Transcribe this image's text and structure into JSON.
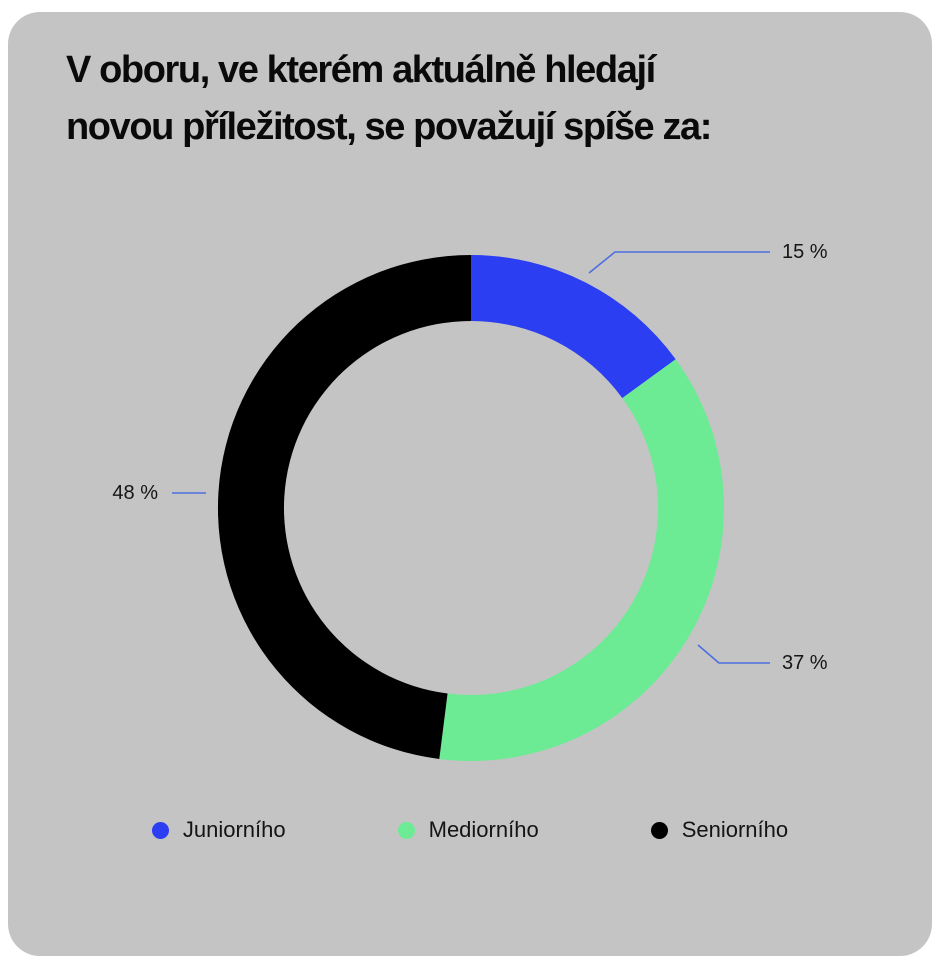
{
  "card": {
    "background": "#C4C4C4",
    "title_line1": "V oboru, ve kterém aktuálně hledají",
    "title_line2": "novou příležitost, se považují spíše za:"
  },
  "chart_data": {
    "type": "pie",
    "subtype": "donut",
    "title": "V oboru, ve kterém aktuálně hledají novou příležitost, se považují spíše za:",
    "categories": [
      "Juniorního",
      "Mediorního",
      "Seniorního"
    ],
    "values": [
      15,
      37,
      48
    ],
    "unit": "%",
    "colors": [
      "#2B3EF2",
      "#6CEB94",
      "#000000"
    ],
    "data_labels": [
      "15 %",
      "37 %",
      "48 %"
    ],
    "start_angle_deg": 0,
    "direction": "clockwise",
    "legend_position": "bottom",
    "grid": false
  },
  "legend": {
    "items": [
      {
        "label": "Juniorního",
        "color": "#2B3EF2"
      },
      {
        "label": "Mediorního",
        "color": "#6CEB94"
      },
      {
        "label": "Seniorního",
        "color": "#000000"
      }
    ]
  },
  "colors": {
    "page_background": "#FFFFFF",
    "card_background": "#C4C4C4",
    "leader_line": "#4D6FE0",
    "title_text": "#0A0A0A"
  }
}
